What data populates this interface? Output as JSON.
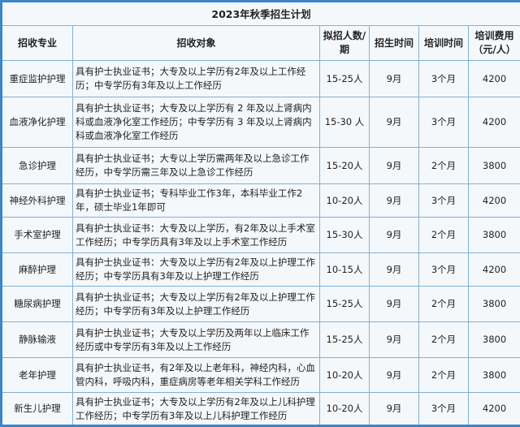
{
  "title": "2023年秋季招生计划",
  "headers": [
    "招收专业",
    "招收对象",
    "拟招人数/期",
    "招生时间",
    "培训时间",
    "培训费用（元/人）"
  ],
  "rows": [
    {
      "major": "重症监护护理",
      "target": "具有护士执业证书；大专及以上学历有2年及以上工作经历；中专学历有3年及以上工作经历",
      "quota": "15-25人",
      "enroll": "9月",
      "duration": "3个月",
      "fee": "4200"
    },
    {
      "major": "血液净化护理",
      "target": "具有护士执业证书；大专及以上学历有 2 年及以上肾病内科或血液净化室工作经历；中专学历有 3 年及以上肾病内科或血液净化室工作经历",
      "quota": "15-30 人",
      "enroll": "9月",
      "duration": "3个月",
      "fee": "4200"
    },
    {
      "major": "急诊护理",
      "target": "具有护士执业证书；大专以上学历需两年及以上急诊工作经历，中专学历需三年及以上急诊工作经历",
      "quota": "15-20人",
      "enroll": "9月",
      "duration": "2个月",
      "fee": "3800"
    },
    {
      "major": "神经外科护理",
      "target": "具有护士执业证书；专科毕业工作3年，本科毕业工作2年，硕士毕业1年即可",
      "quota": "10-20人",
      "enroll": "9月",
      "duration": "3个月",
      "fee": "4200"
    },
    {
      "major": "手术室护理",
      "target": "具有护士执业证书：大专及以上学历，有2年及以上手术室工作经历；中专学历具有3年及以上手术室工作经历",
      "quota": "15-30人",
      "enroll": "9月",
      "duration": "2个月",
      "fee": "3800"
    },
    {
      "major": "麻醉护理",
      "target": "具有护士执业证书：大专及以上学历有2年及以上护理工作经历；中专学历具有3年及以上护理工作经历",
      "quota": "10-15人",
      "enroll": "9月",
      "duration": "3个月",
      "fee": "4200"
    },
    {
      "major": "糖尿病护理",
      "target": "具有护士执业证书；大专及以上学历有2年及以上护理工作经历；中专学历有3年及以上护理工作经历",
      "quota": "15-25人",
      "enroll": "9月",
      "duration": "2个月",
      "fee": "3800"
    },
    {
      "major": "静脉输液",
      "target": "具有护士执业证书；大专及以上学历及两年以上临床工作经历或中专学历有3年及以上工作经历",
      "quota": "15-25人",
      "enroll": "9月",
      "duration": "2个月",
      "fee": "3800"
    },
    {
      "major": "老年护理",
      "target": "具有护士执业证书，有2年及以上老年科，神经内科，心血管内科，呼吸内科，重症病房等老年相关学科工作经历",
      "quota": "10-20人",
      "enroll": "9月",
      "duration": "2个月",
      "fee": "3800"
    },
    {
      "major": "新生儿护理",
      "target": "具有护士执业证书；大专及以上学历有2年及以上儿科护理工作经历；中专学历有3年及以上儿科护理工作经历",
      "quota": "10-20人",
      "enroll": "9月",
      "duration": "3个月",
      "fee": "4200"
    }
  ]
}
